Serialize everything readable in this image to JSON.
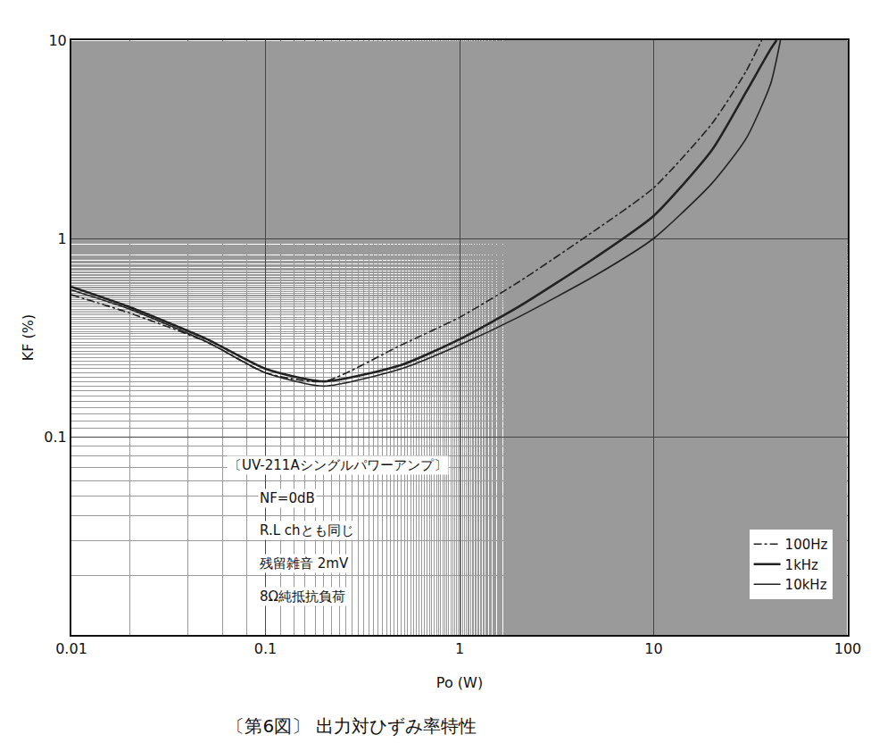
{
  "chart_data": {
    "type": "line",
    "title": "〔第6図〕 出力対ひずみ率特性",
    "x_label": "Po (W)",
    "y_label": "KF (%)",
    "log": true,
    "grid": true,
    "legend": "lower right",
    "xlim": [
      0.01,
      100
    ],
    "xticks": [
      0.01,
      0.1,
      1,
      10,
      100
    ],
    "ylim": [
      0.01,
      10
    ],
    "yticks": [
      0.1,
      1,
      10
    ],
    "annotations": [
      "〔UV-211Aシングルパワーアンプ〕",
      "NF=0dB",
      "R.L chとも同じ",
      "残留雑音 2mV",
      "8Ω純抵抗負荷"
    ],
    "series": [
      {
        "name": "100Hz",
        "color": "#222222",
        "line_style": "dashdot",
        "x": [
          0.01,
          0.02,
          0.05,
          0.1,
          0.2,
          0.5,
          1,
          2,
          5,
          10,
          20,
          30,
          36
        ],
        "values": [
          0.52,
          0.42,
          0.3,
          0.21,
          0.19,
          0.29,
          0.4,
          0.6,
          1.1,
          1.8,
          3.8,
          7,
          10
        ]
      },
      {
        "name": "1kHz",
        "color": "#222222",
        "line_style": "solid",
        "x": [
          0.01,
          0.02,
          0.05,
          0.1,
          0.2,
          0.5,
          1,
          2,
          5,
          10,
          20,
          30,
          40,
          43
        ],
        "values": [
          0.57,
          0.45,
          0.31,
          0.22,
          0.19,
          0.23,
          0.31,
          0.45,
          0.8,
          1.3,
          2.8,
          5.5,
          9,
          10
        ]
      },
      {
        "name": "10kHz",
        "color": "#222222",
        "line_style": "solid",
        "x": [
          0.01,
          0.02,
          0.05,
          0.1,
          0.2,
          0.5,
          1,
          2,
          5,
          10,
          20,
          30,
          40,
          45
        ],
        "values": [
          0.55,
          0.44,
          0.3,
          0.21,
          0.18,
          0.22,
          0.29,
          0.4,
          0.65,
          1.0,
          1.9,
          3.2,
          6,
          10
        ]
      }
    ]
  }
}
